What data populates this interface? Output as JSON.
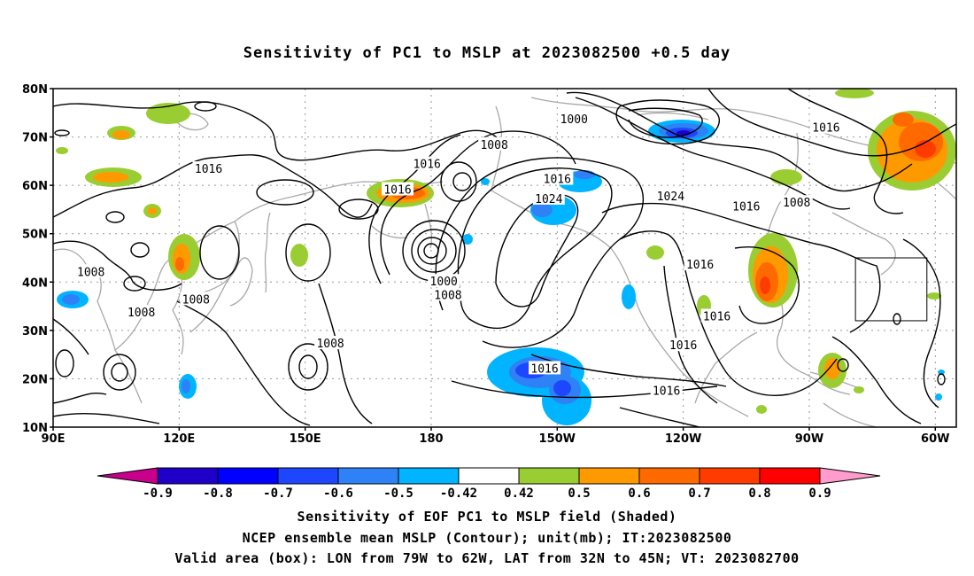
{
  "title": "Sensitivity of PC1 to MSLP at 2023082500 +0.5 day",
  "lat_labels": [
    "80N",
    "70N",
    "60N",
    "50N",
    "40N",
    "30N",
    "20N",
    "10N"
  ],
  "lon_labels": [
    "90E",
    "120E",
    "150E",
    "180",
    "150W",
    "120W",
    "90W",
    "60W"
  ],
  "contour_labels": [
    {
      "text": "1016",
      "lon": 127,
      "lat": 63.5
    },
    {
      "text": "1016",
      "lon": 179,
      "lat": 64.5
    },
    {
      "text": "1016",
      "lon": 172,
      "lat": 59.2
    },
    {
      "text": "1008",
      "lon": 195,
      "lat": 68.5
    },
    {
      "text": "1000",
      "lon": 214,
      "lat": 73.8
    },
    {
      "text": "1016",
      "lon": 274,
      "lat": 72.0
    },
    {
      "text": "1016",
      "lon": 210,
      "lat": 61.4
    },
    {
      "text": "1024",
      "lon": 208,
      "lat": 57.3
    },
    {
      "text": "1024",
      "lon": 237,
      "lat": 57.8
    },
    {
      "text": "1016",
      "lon": 255,
      "lat": 55.7
    },
    {
      "text": "1008",
      "lon": 267,
      "lat": 56.5
    },
    {
      "text": "1008",
      "lon": 99,
      "lat": 42.2
    },
    {
      "text": "1008",
      "lon": 124,
      "lat": 36.5
    },
    {
      "text": "1008",
      "lon": 111,
      "lat": 33.8
    },
    {
      "text": "1000",
      "lon": 183,
      "lat": 40.2
    },
    {
      "text": "1008",
      "lon": 184,
      "lat": 37.4
    },
    {
      "text": "1016",
      "lon": 244,
      "lat": 43.7
    },
    {
      "text": "1008",
      "lon": 156,
      "lat": 27.4
    },
    {
      "text": "1016",
      "lon": 248,
      "lat": 33.0
    },
    {
      "text": "1016",
      "lon": 240,
      "lat": 27.0
    },
    {
      "text": "1016",
      "lon": 207,
      "lat": 22.2
    },
    {
      "text": "1016",
      "lon": 236,
      "lat": 17.6
    }
  ],
  "colorbar": {
    "labels": [
      "-0.9",
      "-0.8",
      "-0.7",
      "-0.6",
      "-0.5",
      "-0.42",
      "0.42",
      "0.5",
      "0.6",
      "0.7",
      "0.8",
      "0.9"
    ],
    "colors": [
      "#c8008c",
      "#1e00c8",
      "#0000ff",
      "#1e46ff",
      "#2e82f5",
      "#00b4ff",
      "#ffffff",
      "#9acd32",
      "#ff9900",
      "#ff6a00",
      "#ff3c00",
      "#ff0000",
      "#ff9ccd"
    ]
  },
  "caption_lines": [
    "Sensitivity of EOF PC1 to MSLP field (Shaded)",
    "NCEP ensemble mean MSLP (Contour); unit(mb); IT:2023082500",
    "Valid area (box): LON from 79W to 62W, LAT from 32N to 45N; VT: 2023082700"
  ],
  "valid_box": {
    "lon_min": -79,
    "lon_max": -62,
    "lat_min": 32,
    "lat_max": 45
  }
}
